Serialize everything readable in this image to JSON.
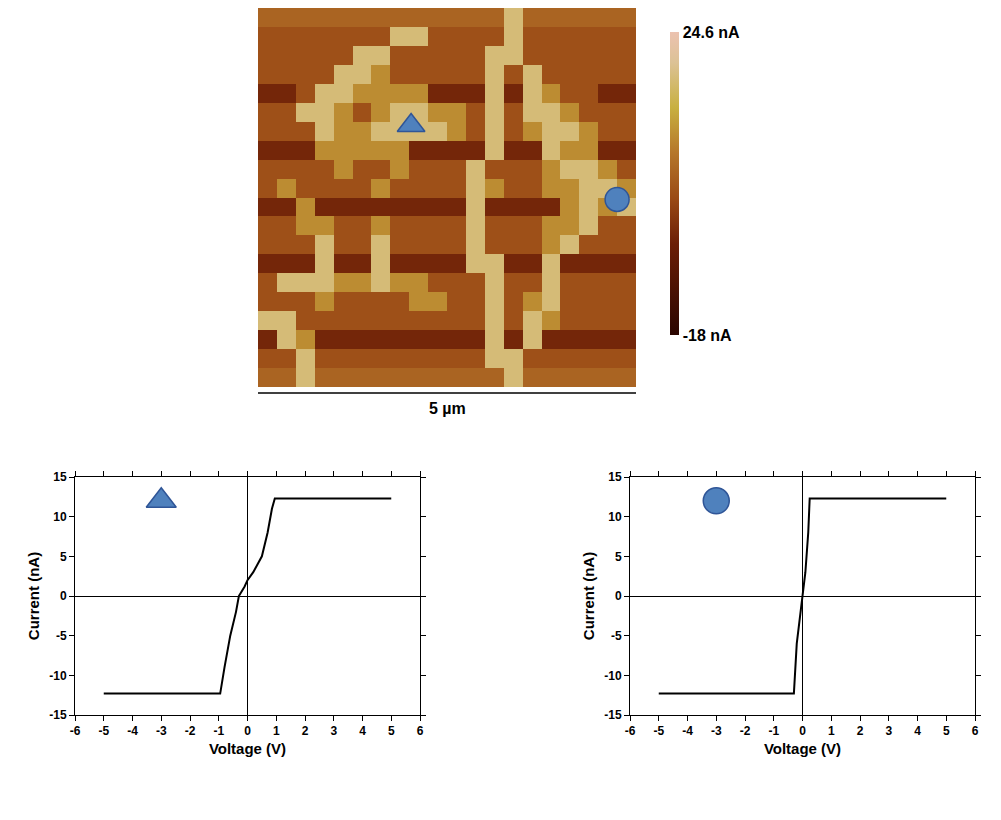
{
  "chart_data": [
    {
      "type": "heatmap",
      "z": [
        [
          5,
          5,
          5,
          5,
          5,
          5,
          5,
          5,
          5,
          5,
          5,
          5,
          5,
          18,
          5,
          5,
          5,
          5,
          5,
          5
        ],
        [
          2,
          2,
          2,
          2,
          2,
          2,
          2,
          18,
          18,
          2,
          2,
          2,
          2,
          18,
          2,
          2,
          2,
          2,
          2,
          2
        ],
        [
          2,
          2,
          2,
          2,
          2,
          18,
          18,
          2,
          2,
          2,
          2,
          2,
          18,
          18,
          2,
          2,
          2,
          2,
          2,
          2
        ],
        [
          2,
          2,
          2,
          2,
          18,
          18,
          10,
          2,
          2,
          2,
          2,
          2,
          18,
          2,
          18,
          2,
          2,
          2,
          2,
          2
        ],
        [
          -4,
          -4,
          2,
          18,
          18,
          10,
          10,
          10,
          10,
          -4,
          -4,
          -4,
          18,
          -4,
          18,
          10,
          2,
          2,
          -4,
          -4
        ],
        [
          2,
          2,
          18,
          18,
          10,
          2,
          10,
          18,
          18,
          10,
          10,
          2,
          18,
          2,
          18,
          18,
          10,
          2,
          2,
          2
        ],
        [
          2,
          2,
          2,
          18,
          10,
          10,
          18,
          18,
          18,
          18,
          10,
          2,
          18,
          2,
          10,
          18,
          18,
          10,
          2,
          2
        ],
        [
          -4,
          -4,
          -4,
          10,
          10,
          10,
          10,
          10,
          -4,
          -4,
          -4,
          -4,
          18,
          -4,
          -4,
          18,
          10,
          10,
          -4,
          -4
        ],
        [
          2,
          2,
          2,
          2,
          10,
          2,
          2,
          10,
          2,
          2,
          2,
          18,
          2,
          2,
          2,
          10,
          18,
          18,
          10,
          2
        ],
        [
          2,
          10,
          2,
          2,
          2,
          2,
          10,
          2,
          2,
          2,
          2,
          18,
          10,
          2,
          2,
          10,
          10,
          18,
          18,
          10
        ],
        [
          -4,
          -4,
          10,
          -4,
          -4,
          -4,
          -4,
          -4,
          -4,
          -4,
          -4,
          18,
          -4,
          -4,
          -4,
          -4,
          10,
          18,
          10,
          18
        ],
        [
          2,
          2,
          10,
          10,
          2,
          2,
          10,
          2,
          2,
          2,
          2,
          18,
          2,
          2,
          2,
          10,
          10,
          18,
          2,
          2
        ],
        [
          2,
          2,
          2,
          18,
          2,
          2,
          18,
          2,
          2,
          2,
          2,
          18,
          2,
          2,
          2,
          10,
          18,
          2,
          2,
          2
        ],
        [
          -4,
          -4,
          -4,
          18,
          -4,
          -4,
          18,
          -4,
          -4,
          -4,
          -4,
          18,
          18,
          -4,
          -4,
          18,
          -4,
          -4,
          -4,
          -4
        ],
        [
          2,
          18,
          18,
          18,
          10,
          10,
          18,
          10,
          10,
          2,
          2,
          2,
          18,
          2,
          2,
          18,
          2,
          2,
          2,
          2
        ],
        [
          2,
          2,
          2,
          10,
          2,
          2,
          2,
          2,
          10,
          10,
          2,
          2,
          18,
          2,
          10,
          18,
          2,
          2,
          2,
          2
        ],
        [
          18,
          18,
          2,
          2,
          2,
          2,
          2,
          2,
          2,
          2,
          2,
          2,
          18,
          2,
          18,
          10,
          2,
          2,
          2,
          2
        ],
        [
          -4,
          18,
          10,
          -4,
          -4,
          -4,
          -4,
          -4,
          -4,
          -4,
          -4,
          -4,
          18,
          -4,
          18,
          -4,
          -4,
          -4,
          -4,
          -4
        ],
        [
          2,
          2,
          18,
          2,
          2,
          2,
          2,
          2,
          2,
          2,
          2,
          2,
          18,
          18,
          2,
          2,
          2,
          2,
          2,
          2
        ],
        [
          5,
          5,
          18,
          5,
          5,
          5,
          5,
          5,
          5,
          5,
          5,
          5,
          5,
          18,
          5,
          5,
          5,
          5,
          5,
          5
        ]
      ],
      "zlim": [
        -18,
        24.6
      ],
      "zticks": [
        {
          "value": 24.6,
          "label": "24.6 nA"
        },
        {
          "value": -18,
          "label": "-18 nA"
        }
      ],
      "tick_labels": false,
      "scale_bar": "5 µm",
      "annotations": [
        {
          "marker": "triangle-up",
          "color": "#4f81bd",
          "x": 7.6,
          "y": 5.7
        },
        {
          "marker": "circle",
          "color": "#4f81bd",
          "x": 18.5,
          "y": 9.6
        }
      ]
    },
    {
      "type": "line",
      "xlabel": "Voltage (V)",
      "ylabel": "Current (nA)",
      "xlim": [
        -6,
        6
      ],
      "xticks": [
        -6,
        -5,
        -4,
        -3,
        -2,
        -1,
        0,
        1,
        2,
        3,
        4,
        5,
        6
      ],
      "ylim": [
        -15,
        15
      ],
      "yticks": [
        -15,
        -10,
        -5,
        0,
        5,
        10,
        15
      ],
      "series": [
        {
          "color": "#000000",
          "line_style": "solid",
          "x": [
            -5,
            -0.95,
            -0.8,
            -0.6,
            -0.4,
            -0.3,
            -0.1,
            0,
            0.2,
            0.5,
            0.7,
            0.85,
            0.95,
            5
          ],
          "values": [
            -12.3,
            -12.3,
            -9,
            -5,
            -2,
            0,
            1.2,
            2,
            3,
            5,
            8,
            11,
            12.3,
            12.3
          ]
        }
      ],
      "annotations": [
        {
          "marker": "triangle-up",
          "color": "#4f81bd",
          "x": -3,
          "y": 12
        }
      ]
    },
    {
      "type": "line",
      "xlabel": "Voltage (V)",
      "ylabel": "Current (nA)",
      "xlim": [
        -6,
        6
      ],
      "xticks": [
        -6,
        -5,
        -4,
        -3,
        -2,
        -1,
        0,
        1,
        2,
        3,
        4,
        5,
        6
      ],
      "ylim": [
        -15,
        15
      ],
      "yticks": [
        -15,
        -10,
        -5,
        0,
        5,
        10,
        15
      ],
      "series": [
        {
          "color": "#000000",
          "line_style": "solid",
          "x": [
            -5,
            -0.3,
            -0.2,
            -0.1,
            0,
            0.1,
            0.2,
            0.25,
            5
          ],
          "values": [
            -12.3,
            -12.3,
            -6,
            -3,
            0,
            3,
            8,
            12.3,
            12.3
          ]
        }
      ],
      "annotations": [
        {
          "marker": "circle",
          "color": "#4f81bd",
          "x": -3,
          "y": 12
        }
      ]
    }
  ]
}
